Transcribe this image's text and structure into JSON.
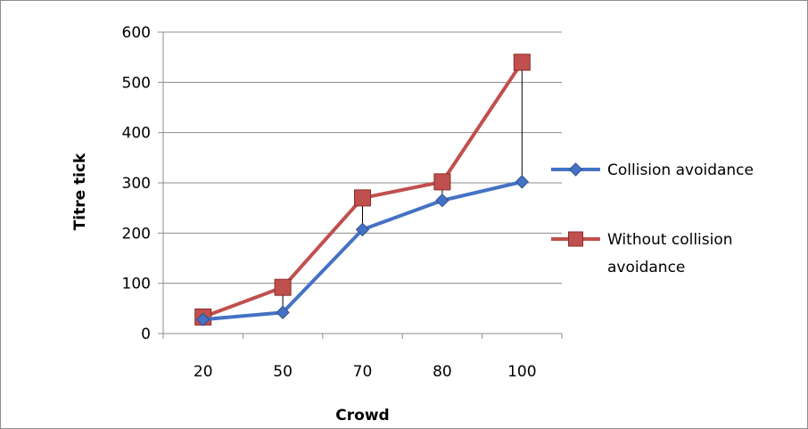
{
  "chart_data": {
    "type": "line",
    "categories": [
      "20",
      "50",
      "70",
      "80",
      "100"
    ],
    "series": [
      {
        "name": "Collision avoidance",
        "values": [
          28,
          42,
          207,
          265,
          302
        ],
        "color": "#4472c4",
        "marker": "diamond"
      },
      {
        "name": "Without collision avoidance",
        "name_lines": [
          "Without collision",
          "avoidance"
        ],
        "values": [
          33,
          92,
          270,
          302,
          540
        ],
        "color": "#c0504d",
        "marker": "square"
      }
    ],
    "xlabel": "Crowd",
    "ylabel": "Titre tick",
    "ylim": [
      0,
      600
    ],
    "yticks": [
      0,
      100,
      200,
      300,
      400,
      500,
      600
    ],
    "grid": true,
    "legend_position": "right",
    "drop_lines": true
  }
}
